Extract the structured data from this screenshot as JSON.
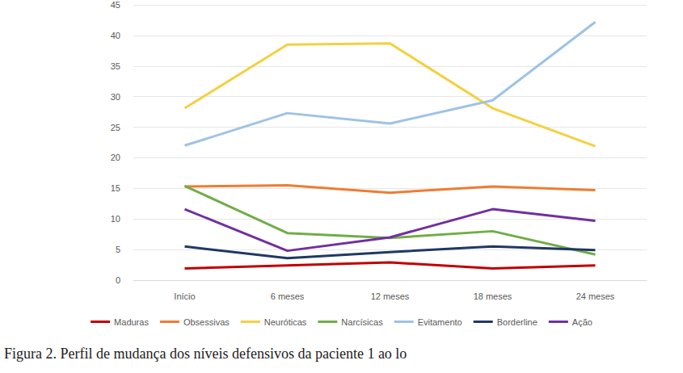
{
  "chart_data": {
    "type": "line",
    "title": "Figura 2. Perfil de mudança dos níveis defensivos da paciente 1 ao lo",
    "categories": [
      "Início",
      "6 meses",
      "12 meses",
      "18 meses",
      "24 meses"
    ],
    "series": [
      {
        "name": "Maduras",
        "color": "#c00000",
        "values": [
          1.9,
          2.4,
          2.9,
          1.9,
          2.4
        ]
      },
      {
        "name": "Obsessivas",
        "color": "#ed7d31",
        "values": [
          15.3,
          15.5,
          14.3,
          15.3,
          14.7
        ]
      },
      {
        "name": "Neuróticas",
        "color": "#f4d03f",
        "values": [
          28.1,
          38.5,
          38.7,
          28.1,
          21.9
        ]
      },
      {
        "name": "Narcísicas",
        "color": "#70ad47",
        "values": [
          15.4,
          7.7,
          6.9,
          8.0,
          4.2
        ]
      },
      {
        "name": "Evitamento",
        "color": "#9dc3e6",
        "values": [
          22.0,
          27.3,
          25.6,
          29.4,
          42.2
        ]
      },
      {
        "name": "Borderline",
        "color": "#203864",
        "values": [
          5.5,
          3.6,
          4.6,
          5.5,
          4.9
        ]
      },
      {
        "name": "Ação",
        "color": "#7030a0",
        "values": [
          11.6,
          4.8,
          7.0,
          11.6,
          9.7
        ]
      }
    ],
    "ylim": [
      0,
      45
    ],
    "yticks": [
      0,
      5,
      10,
      15,
      20,
      25,
      30,
      35,
      40,
      45
    ],
    "grid": true,
    "legend": "bottom"
  }
}
